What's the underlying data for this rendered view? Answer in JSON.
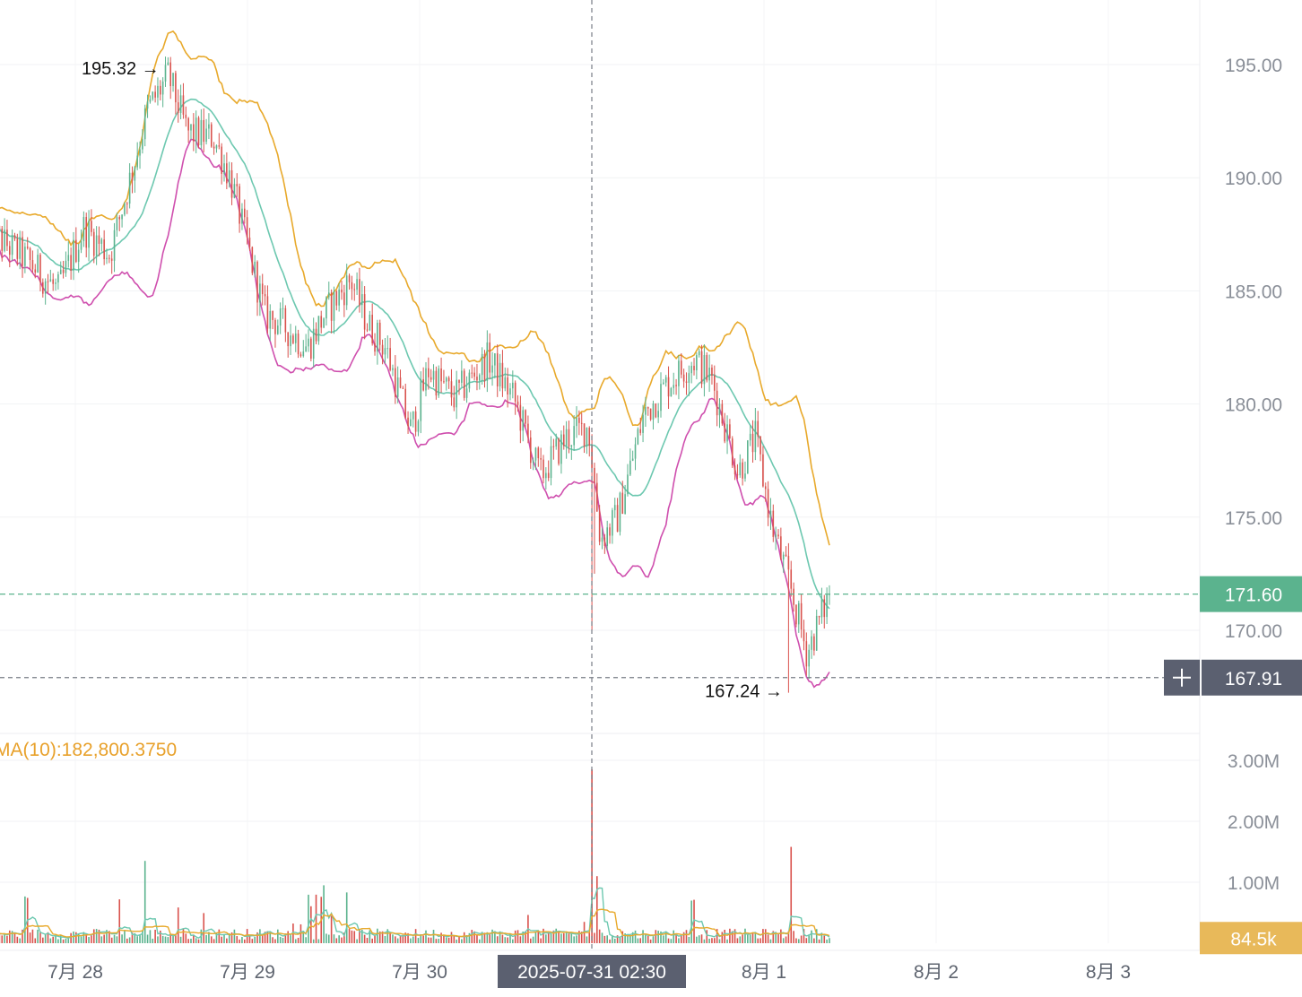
{
  "chart_data": {
    "type": "candlestick",
    "price_axis": {
      "ticks": [
        "195.00",
        "190.00",
        "185.00",
        "180.00",
        "175.00",
        "170.00"
      ],
      "tick_values": [
        195,
        190,
        185,
        180,
        175,
        170
      ],
      "range": [
        166.5,
        197.5
      ]
    },
    "volume_axis": {
      "ticks": [
        "3.00M",
        "2.00M",
        "1.00M"
      ],
      "tick_values": [
        3000000,
        2000000,
        1000000
      ],
      "range": [
        0,
        3200000
      ]
    },
    "x_axis": {
      "ticks": [
        "7月 28",
        "7月 29",
        "7月 30",
        "8月 1",
        "8月 2",
        "8月 3"
      ],
      "tick_positions": [
        0.5,
        1.5,
        2.5,
        4.5,
        5.5,
        6.5
      ]
    },
    "data_start_day": 0.0,
    "data_end_day": 4.88,
    "crosshair": {
      "label": "2025-07-31 02:30",
      "day": 3.5,
      "price_label": "167.91",
      "price": 167.91
    },
    "last_price": {
      "label": "171.60",
      "value": 171.6,
      "color": "#5bb38e"
    },
    "last_volume": {
      "label": "84.5k",
      "value": 84500,
      "color": "#e8b95a"
    },
    "high_annotation": {
      "label": "195.32",
      "value": 195.32,
      "day": 1.04
    },
    "low_annotation": {
      "label": "167.24",
      "value": 167.24,
      "day": 4.64
    },
    "ma_legend": "MA(10):182,800.3750",
    "bands": {
      "upper_color": "#e8a92b",
      "middle_color": "#6dc8b0",
      "lower_color": "#cf4fae"
    },
    "price_path": [
      [
        0.0,
        187.6
      ],
      [
        0.2,
        186.5
      ],
      [
        0.4,
        185.0
      ],
      [
        0.55,
        187.8
      ],
      [
        0.7,
        186.6
      ],
      [
        0.82,
        190.0
      ],
      [
        0.92,
        193.0
      ],
      [
        1.04,
        194.5
      ],
      [
        1.15,
        192.0
      ],
      [
        1.3,
        191.8
      ],
      [
        1.4,
        190.0
      ],
      [
        1.5,
        187.0
      ],
      [
        1.6,
        184.0
      ],
      [
        1.7,
        183.5
      ],
      [
        1.85,
        182.5
      ],
      [
        1.95,
        184.0
      ],
      [
        2.1,
        185.5
      ],
      [
        2.2,
        183.5
      ],
      [
        2.3,
        182.5
      ],
      [
        2.45,
        178.8
      ],
      [
        2.55,
        181.5
      ],
      [
        2.7,
        180.3
      ],
      [
        2.9,
        182.0
      ],
      [
        3.05,
        180.2
      ],
      [
        3.2,
        176.8
      ],
      [
        3.35,
        178.5
      ],
      [
        3.48,
        179.0
      ],
      [
        3.55,
        174.0
      ],
      [
        3.65,
        175.0
      ],
      [
        3.8,
        179.5
      ],
      [
        3.95,
        181.0
      ],
      [
        4.1,
        182.0
      ],
      [
        4.2,
        181.0
      ],
      [
        4.35,
        177.0
      ],
      [
        4.45,
        178.5
      ],
      [
        4.55,
        174.5
      ],
      [
        4.65,
        172.0
      ],
      [
        4.75,
        169.0
      ],
      [
        4.88,
        171.6
      ]
    ],
    "colors": {
      "up": "#5bb38e",
      "down": "#d9524d"
    }
  }
}
